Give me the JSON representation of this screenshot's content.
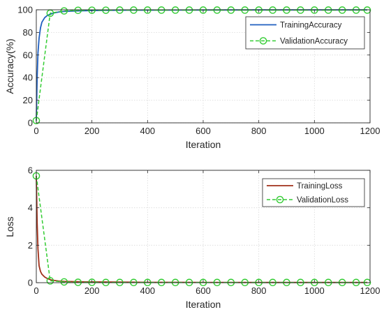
{
  "chart_data": [
    {
      "type": "line",
      "xlabel": "Iteration",
      "ylabel": "Accuracy(%)",
      "xlim": [
        0,
        1200
      ],
      "ylim": [
        0,
        100
      ],
      "xticks": [
        0,
        200,
        400,
        600,
        800,
        1000,
        1200
      ],
      "yticks": [
        0,
        20,
        40,
        60,
        80,
        100
      ],
      "grid": true,
      "legend_position": "top-right",
      "series": [
        {
          "name": "TrainingAccuracy",
          "style": "solid",
          "color": "#1f5fbf",
          "x": [
            0,
            3,
            6,
            10,
            15,
            20,
            30,
            40,
            50,
            60,
            80,
            100,
            150,
            200,
            300,
            400,
            600,
            800,
            1000,
            1190
          ],
          "y": [
            2,
            40,
            62,
            75,
            84,
            89,
            93,
            95,
            96,
            97,
            98,
            98.5,
            99,
            99.3,
            99.6,
            99.7,
            99.8,
            99.9,
            99.9,
            99.9
          ]
        },
        {
          "name": "ValidationAccuracy",
          "style": "dashed-circle",
          "color": "#33cc33",
          "x": [
            0,
            50,
            100,
            150,
            200,
            250,
            300,
            350,
            400,
            450,
            500,
            550,
            600,
            650,
            700,
            750,
            800,
            850,
            900,
            950,
            1000,
            1050,
            1100,
            1150,
            1190
          ],
          "y": [
            2,
            97,
            99,
            99.5,
            99.6,
            99.6,
            99.7,
            99.7,
            99.7,
            99.7,
            99.7,
            99.7,
            99.7,
            99.7,
            99.7,
            99.7,
            99.7,
            99.7,
            99.7,
            99.7,
            99.7,
            99.7,
            99.7,
            99.7,
            99.7
          ]
        }
      ]
    },
    {
      "type": "line",
      "xlabel": "Iteration",
      "ylabel": "Loss",
      "xlim": [
        0,
        1200
      ],
      "ylim": [
        0,
        6
      ],
      "xticks": [
        0,
        200,
        400,
        600,
        800,
        1000,
        1200
      ],
      "yticks": [
        0,
        2,
        4,
        6
      ],
      "grid": true,
      "legend_position": "top-right",
      "series": [
        {
          "name": "TrainingLoss",
          "style": "solid",
          "color": "#a0301a",
          "x": [
            0,
            3,
            6,
            10,
            15,
            20,
            30,
            40,
            50,
            60,
            80,
            100,
            150,
            200,
            300,
            400,
            600,
            800,
            1000,
            1190
          ],
          "y": [
            5.7,
            3.2,
            1.8,
            0.9,
            0.6,
            0.45,
            0.3,
            0.22,
            0.16,
            0.13,
            0.09,
            0.07,
            0.05,
            0.04,
            0.03,
            0.02,
            0.015,
            0.01,
            0.01,
            0.01
          ]
        },
        {
          "name": "ValidationLoss",
          "style": "dashed-circle",
          "color": "#33cc33",
          "x": [
            0,
            50,
            100,
            150,
            200,
            250,
            300,
            350,
            400,
            450,
            500,
            550,
            600,
            650,
            700,
            750,
            800,
            850,
            900,
            950,
            1000,
            1050,
            1100,
            1150,
            1190
          ],
          "y": [
            5.7,
            0.1,
            0.04,
            0.02,
            0.02,
            0.01,
            0.01,
            0.01,
            0.01,
            0.01,
            0.01,
            0.01,
            0.01,
            0.01,
            0.01,
            0.01,
            0.01,
            0.01,
            0.01,
            0.01,
            0.01,
            0.01,
            0.01,
            0.01,
            0.01
          ]
        }
      ]
    }
  ]
}
